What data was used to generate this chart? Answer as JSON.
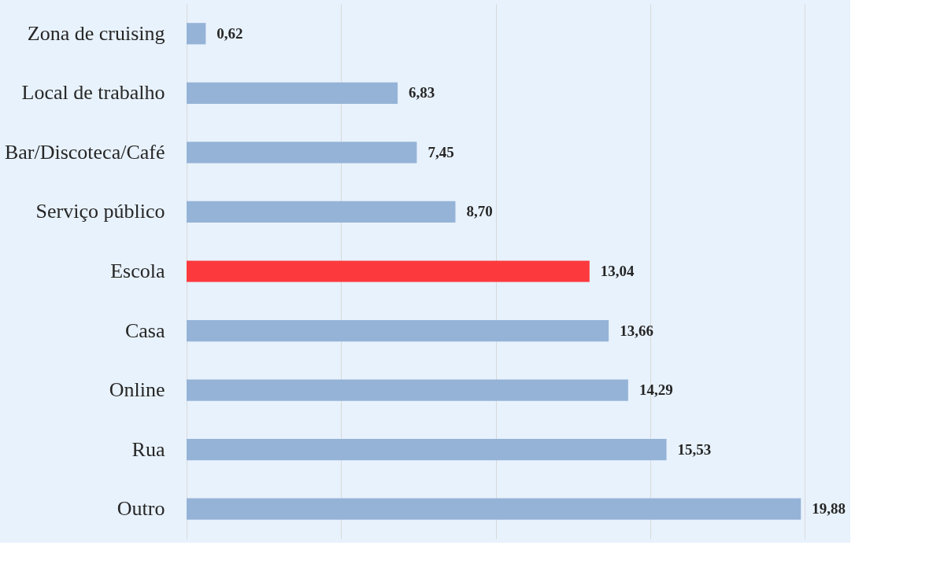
{
  "chart_data": {
    "type": "bar",
    "orientation": "horizontal",
    "categories": [
      "Zona de cruising",
      "Local de trabalho",
      "Bar/Discoteca/Café",
      "Serviço público",
      "Escola",
      "Casa",
      "Online",
      "Rua",
      "Outro"
    ],
    "values": [
      0.62,
      6.83,
      7.45,
      8.7,
      13.04,
      13.66,
      14.29,
      15.53,
      19.88
    ],
    "colors": [
      "#95b3d7",
      "#95b3d7",
      "#95b3d7",
      "#95b3d7",
      "#fc3a3e",
      "#95b3d7",
      "#95b3d7",
      "#95b3d7",
      "#95b3d7"
    ],
    "value_labels": [
      "0,62",
      "6,83",
      "7,45",
      "8,70",
      "13,04",
      "13,66",
      "14,29",
      "15,53",
      "19,88"
    ],
    "grid": "x"
  }
}
